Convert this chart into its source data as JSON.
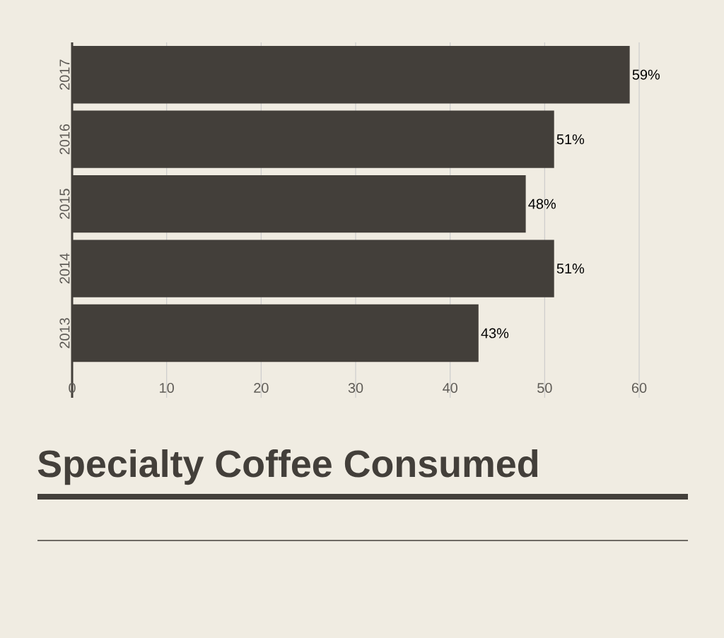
{
  "chart_data": {
    "type": "bar",
    "orientation": "horizontal",
    "title": "Specialty Coffee Consumed",
    "categories": [
      "2017",
      "2016",
      "2015",
      "2014",
      "2013"
    ],
    "values": [
      59,
      51,
      48,
      51,
      43
    ],
    "value_labels": [
      "59%",
      "51%",
      "48%",
      "51%",
      "43%"
    ],
    "color": "#433f3a",
    "xlim": [
      0,
      60
    ],
    "xticks": [
      0,
      10,
      20,
      30,
      40,
      50,
      60
    ],
    "grid": "x"
  }
}
